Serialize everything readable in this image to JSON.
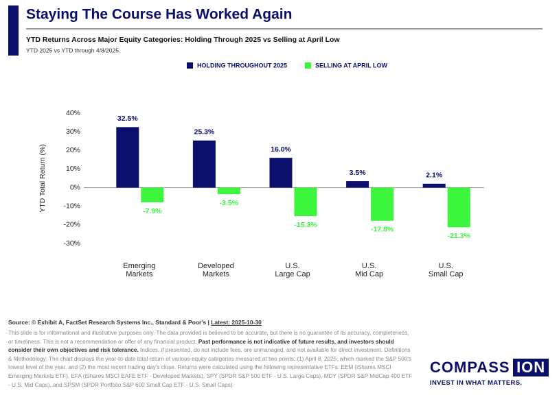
{
  "header": {
    "title": "Staying The Course Has Worked Again"
  },
  "chart_data": {
    "type": "bar",
    "title": "YTD Returns Across Major Equity Categories: Holding Through 2025 vs Selling at April Low",
    "subtitle": "YTD 2025 vs YTD through 4/8/2025.",
    "y_label": "YTD Total Return (%)",
    "categories": [
      "Emerging\nMarkets",
      "Developed\nMarkets",
      "U.S.\nLarge Cap",
      "U.S.\nMid Cap",
      "U.S.\nSmall Cap"
    ],
    "series": [
      {
        "name": "HOLDING THROUGHOUT 2025",
        "color": "#0a0f6b",
        "values": [
          32.5,
          25.3,
          16.0,
          3.5,
          2.1
        ],
        "value_labels": [
          "32.5%",
          "25.3%",
          "16.0%",
          "3.5%",
          "2.1%"
        ]
      },
      {
        "name": "SELLING AT APRIL LOW",
        "color": "#3cf53c",
        "values": [
          -7.9,
          -3.5,
          -15.3,
          -17.8,
          -21.3
        ],
        "value_labels": [
          "-7.9%",
          "-3.5%",
          "-15.3%",
          "-17.8%",
          "-21.3%"
        ]
      }
    ],
    "ylim": [
      -30,
      40
    ],
    "yticks": [
      {
        "value": -30,
        "label": "-30%"
      },
      {
        "value": -20,
        "label": "-20%"
      },
      {
        "value": -10,
        "label": "-10%"
      },
      {
        "value": 0,
        "label": "0%"
      },
      {
        "value": 10,
        "label": "10%"
      },
      {
        "value": 20,
        "label": "20%"
      },
      {
        "value": 30,
        "label": "30%"
      },
      {
        "value": 40,
        "label": "40%"
      }
    ],
    "grid": false,
    "legend": "top"
  },
  "footer": {
    "source": "Source: © Exhibit A, FactSet Research Systems Inc., Standard & Poor's | ",
    "latest": "Latest: 2025-10-30",
    "disclaimer": [
      "This slide is for informational and illustrative purposes only. The data provided is believed to be accurate, but there is no guarantee of its accuracy, completeness, or timeliness. This is not a recommendation or offer of any financial product. ",
      "Past performance is not indicative of future results, and investors should consider their own objectives and risk tolerance.",
      " Indices, if presented, do not include fees, are unmanaged, and not available for direct investment. Definitions & Methodology: The chart displays the year-to-date total return of various equity categories measured at two points: (1) April 8, 2025, which marked the S&P 500's lowest level of the year, and (2) the most recent trading day's close. Returns were calculated using the following representative ETFs: EEM (iShares MSCI Emerging Markets ETF), EFA (iShares MSCI EAFE ETF - Developed Markets), SPY (SPDR S&P 500 ETF - U.S. Large Caps), MDY (SPDR S&P MidCap 400 ETF - U.S. Mid Caps), and SPSM (SPDR Portfolio S&P 600 Small Cap ETF - U.S. Small Caps)."
    ]
  },
  "logo": {
    "word1": "COMPASS",
    "word2": "ION",
    "tagline": "INVEST IN WHAT MATTERS."
  }
}
